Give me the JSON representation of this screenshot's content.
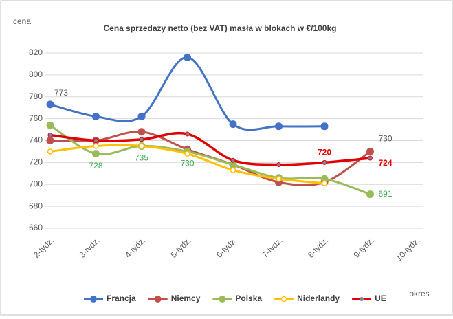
{
  "chart_data": {
    "type": "line",
    "title": "Cena sprzedaży netto (bez VAT) masła w blokach w €/100kg",
    "y_label": "cena",
    "x_label": "okres",
    "categories": [
      "2-tydz.",
      "3-tydz.",
      "4-tydz.",
      "5-tydz.",
      "6-tydz.",
      "7-tydz.",
      "8-tydz.",
      "9-tydz.",
      "10-tydz."
    ],
    "ylim": [
      660,
      820
    ],
    "yticks": [
      660,
      680,
      700,
      720,
      740,
      760,
      780,
      800,
      820
    ],
    "grid": true,
    "legend": "bottom",
    "series": [
      {
        "name": "Francja",
        "color": "#4472c4",
        "values": [
          773,
          762,
          762,
          816,
          755,
          753,
          753,
          null,
          null
        ],
        "data_labels": [
          0
        ],
        "label_color": "#595959"
      },
      {
        "name": "Niemcy",
        "color": "#c0504d",
        "values": [
          740,
          740,
          748,
          732,
          718,
          702,
          702,
          730,
          null
        ],
        "data_labels": [
          7
        ],
        "label_color": "#595959"
      },
      {
        "name": "Polska",
        "color": "#9bbb59",
        "values": [
          754,
          728,
          735,
          730,
          718,
          706,
          705,
          691,
          null
        ],
        "data_labels": [
          1,
          2,
          3,
          7
        ],
        "label_color": "#3daa4a"
      },
      {
        "name": "Niderlandy",
        "color": "#ffc000",
        "values": [
          730,
          735,
          735,
          728,
          713,
          705,
          701,
          null,
          null
        ],
        "data_labels": [],
        "label_color": "#595959"
      },
      {
        "name": "UE",
        "color": "#e00000",
        "values": [
          745,
          740,
          741,
          746,
          722,
          718,
          720,
          724,
          null
        ],
        "data_labels": [
          6,
          7
        ],
        "label_color": "#e00000"
      }
    ]
  }
}
